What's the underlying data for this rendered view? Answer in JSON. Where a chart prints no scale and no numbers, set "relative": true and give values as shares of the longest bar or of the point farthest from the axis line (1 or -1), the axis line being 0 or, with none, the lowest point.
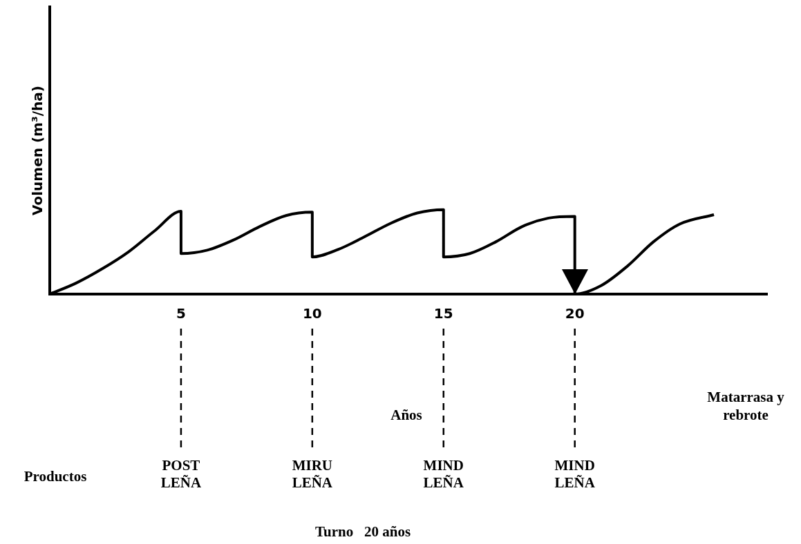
{
  "chart_data": {
    "type": "line",
    "relative": true,
    "ylabel": "Volumen (m³/ha)",
    "xlim": [
      0,
      27.3
    ],
    "xticks": [
      5,
      10,
      15,
      20
    ],
    "grid": false,
    "legend": false,
    "marker": "none",
    "line_style": "solid",
    "series": [
      {
        "color": "#000000",
        "x": [
          0,
          1,
          2,
          3,
          4,
          5,
          5,
          6,
          7,
          8,
          9,
          10,
          10,
          11,
          12,
          13,
          14,
          15,
          15,
          16,
          17,
          18,
          19,
          20,
          20,
          21,
          22,
          23,
          24,
          25.3
        ],
        "values": [
          0,
          0.13,
          0.3,
          0.5,
          0.75,
          0.98,
          0.48,
          0.52,
          0.64,
          0.8,
          0.93,
          0.97,
          0.44,
          0.53,
          0.68,
          0.84,
          0.96,
          1.0,
          0.44,
          0.48,
          0.62,
          0.8,
          0.9,
          0.92,
          0,
          0.1,
          0.33,
          0.62,
          0.83,
          0.94
        ]
      }
    ],
    "ref_lines": [
      {
        "axis": "x",
        "value": 5,
        "label": "POST\nLEÑA",
        "line_style": "dashed"
      },
      {
        "axis": "x",
        "value": 10,
        "label": "MIRU\nLEÑA",
        "line_style": "dashed"
      },
      {
        "axis": "x",
        "value": 15,
        "label": "MIND\nLEÑA",
        "line_style": "dashed"
      },
      {
        "axis": "x",
        "value": 20,
        "label": "MIND\nLEÑA",
        "line_style": "dashed"
      }
    ],
    "annotations": [
      "Años",
      "Matarrasa y\nrebrote",
      "Productos",
      "Turno   20 años"
    ]
  }
}
